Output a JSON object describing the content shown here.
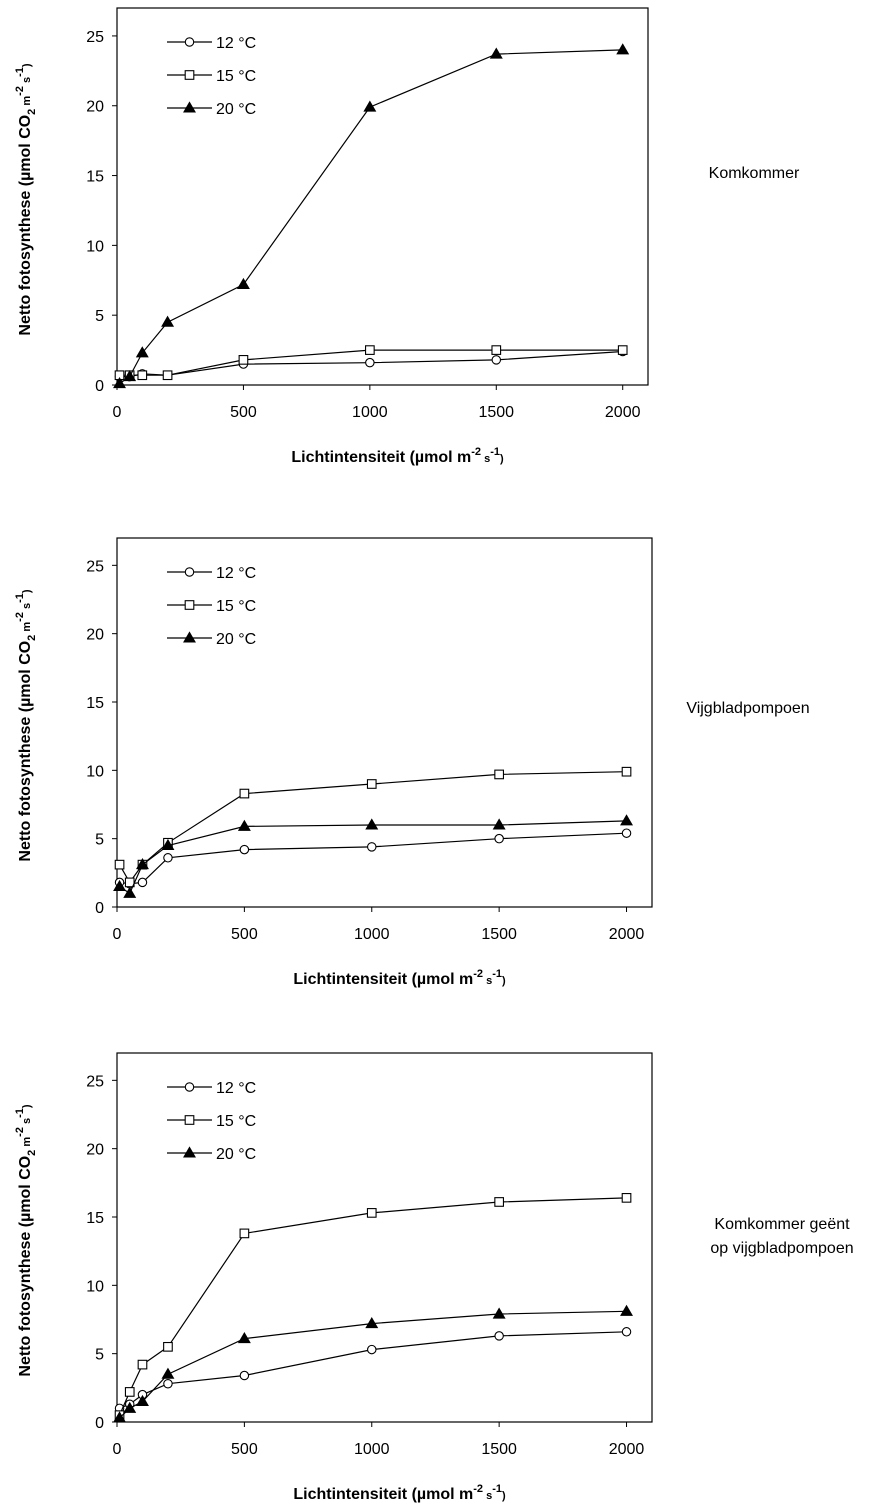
{
  "chart_data": [
    {
      "type": "line",
      "side_label": [
        "Komkommer"
      ],
      "xlabel": {
        "main": "Lichtintensiteit (µmol m",
        "sup1": "-2",
        "mid": " s",
        "sup2": "-1",
        "end": ")"
      },
      "ylabel": {
        "main": "Netto fotosynthese (µmol CO",
        "sub": "2",
        "mid": " m",
        "sup1": "-2",
        "mid2": " s",
        "sup2": "-1",
        "end": ")"
      },
      "xlim": [
        0,
        2100
      ],
      "ylim": [
        0,
        27
      ],
      "x_ticks": [
        0,
        500,
        1000,
        1500,
        2000
      ],
      "y_ticks": [
        0,
        5,
        10,
        15,
        20,
        25
      ],
      "legend": "top-left",
      "x": [
        10,
        50,
        100,
        200,
        500,
        1000,
        1500,
        2000
      ],
      "series": [
        {
          "name": "12 °C",
          "marker": "circle",
          "values": [
            0.6,
            0.6,
            0.8,
            0.7,
            1.5,
            1.6,
            1.8,
            2.4
          ]
        },
        {
          "name": "15 °C",
          "marker": "square",
          "values": [
            0.7,
            0.7,
            0.7,
            0.7,
            1.8,
            2.5,
            2.5,
            2.5
          ]
        },
        {
          "name": "20 °C",
          "marker": "triangle",
          "values": [
            0.1,
            0.6,
            2.3,
            4.5,
            7.2,
            19.9,
            23.7,
            24.0
          ]
        }
      ]
    },
    {
      "type": "line",
      "side_label": [
        "Vijgbladpompoen"
      ],
      "xlabel": {
        "main": "Lichtintensiteit (µmol m",
        "sup1": "-2",
        "mid": " s",
        "sup2": "-1",
        "end": ")"
      },
      "ylabel": {
        "main": "Netto fotosynthese (µmol CO",
        "sub": "2",
        "mid": " m",
        "sup1": "-2",
        "mid2": " s",
        "sup2": "-1",
        "end": ")"
      },
      "xlim": [
        0,
        2100
      ],
      "ylim": [
        0,
        27
      ],
      "x_ticks": [
        0,
        500,
        1000,
        1500,
        2000
      ],
      "y_ticks": [
        0,
        5,
        10,
        15,
        20,
        25
      ],
      "legend": "top-left",
      "x": [
        10,
        50,
        100,
        200,
        500,
        1000,
        1500,
        2000
      ],
      "series": [
        {
          "name": "12 °C",
          "marker": "circle",
          "values": [
            1.8,
            1.7,
            1.8,
            3.6,
            4.2,
            4.4,
            5.0,
            5.4
          ]
        },
        {
          "name": "15 °C",
          "marker": "square",
          "values": [
            3.1,
            1.8,
            3.1,
            4.7,
            8.3,
            9.0,
            9.7,
            9.9
          ]
        },
        {
          "name": "20 °C",
          "marker": "triangle",
          "values": [
            1.5,
            1.0,
            3.1,
            4.5,
            5.9,
            6.0,
            6.0,
            6.3
          ]
        }
      ]
    },
    {
      "type": "line",
      "side_label": [
        "Komkommer geënt",
        "op vijgbladpompoen"
      ],
      "xlabel": {
        "main": "Lichtintensiteit (µmol m",
        "sup1": "-2",
        "mid": " s",
        "sup2": "-1",
        "end": ")"
      },
      "ylabel": {
        "main": "Netto fotosynthese (µmol CO",
        "sub": "2",
        "mid": " m",
        "sup1": "-2",
        "mid2": " s",
        "sup2": "-1",
        "end": ")"
      },
      "xlim": [
        0,
        2100
      ],
      "ylim": [
        0,
        27
      ],
      "x_ticks": [
        0,
        500,
        1000,
        1500,
        2000
      ],
      "y_ticks": [
        0,
        5,
        10,
        15,
        20,
        25
      ],
      "legend": "top-left",
      "x": [
        10,
        50,
        100,
        200,
        500,
        1000,
        1500,
        2000
      ],
      "series": [
        {
          "name": "12 °C",
          "marker": "circle",
          "values": [
            1.0,
            1.3,
            2.0,
            2.8,
            3.4,
            5.3,
            6.3,
            6.6
          ]
        },
        {
          "name": "15 °C",
          "marker": "square",
          "values": [
            0.5,
            2.2,
            4.2,
            5.5,
            13.8,
            15.3,
            16.1,
            16.4
          ]
        },
        {
          "name": "20 °C",
          "marker": "triangle",
          "values": [
            0.3,
            1.0,
            1.5,
            3.5,
            6.1,
            7.2,
            7.9,
            8.1
          ]
        }
      ]
    }
  ]
}
